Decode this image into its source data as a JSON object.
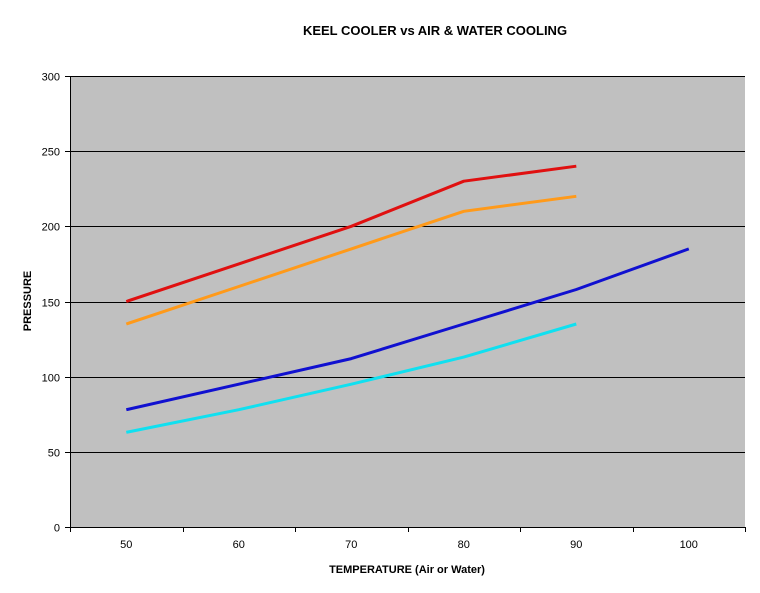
{
  "chart_data": {
    "type": "line",
    "title": "KEEL COOLER vs AIR & WATER COOLING",
    "xlabel": "TEMPERATURE (Air or Water)",
    "ylabel": "PRESSURE",
    "categories": [
      "50",
      "60",
      "70",
      "80",
      "90",
      "100"
    ],
    "ylim": [
      0,
      300
    ],
    "yticks": [
      0,
      50,
      100,
      150,
      200,
      250,
      300
    ],
    "grid": true,
    "legend": "none",
    "colors": {
      "plot_background": "#c0c0c0",
      "gridline": "#000000"
    },
    "series": [
      {
        "color": "#e01010",
        "values": [
          150,
          175,
          200,
          230,
          240,
          null
        ]
      },
      {
        "color": "#ff9a1a",
        "values": [
          135,
          160,
          185,
          210,
          220,
          null
        ]
      },
      {
        "color": "#1010d0",
        "values": [
          78,
          95,
          112,
          135,
          158,
          185
        ]
      },
      {
        "color": "#10e0f0",
        "values": [
          63,
          78,
          95,
          113,
          135,
          null
        ]
      }
    ]
  }
}
